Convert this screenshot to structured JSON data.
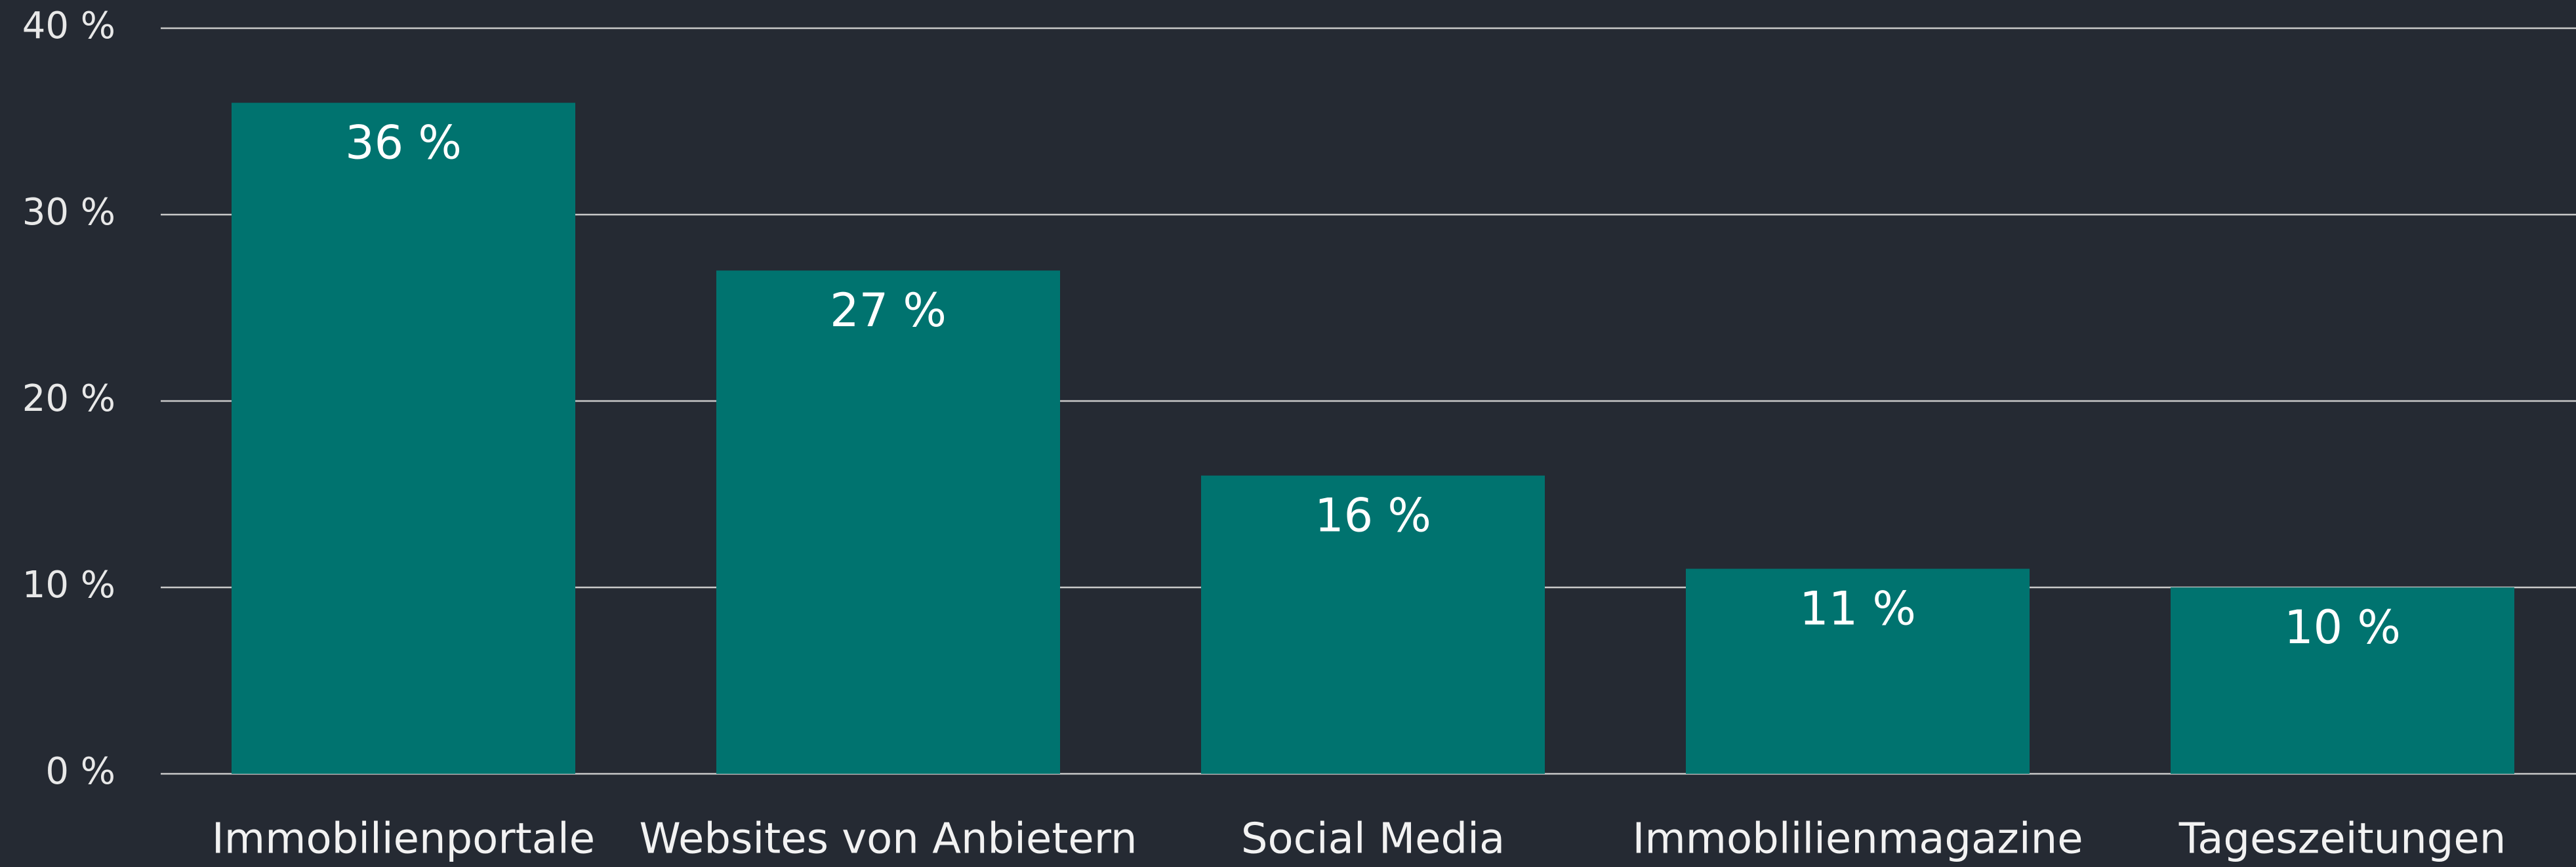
{
  "chart_data": {
    "type": "bar",
    "categories": [
      "Immobilienportale",
      "Websites von Anbietern",
      "Social Media",
      "Immoblilienmagazine",
      "Tageszeitungen"
    ],
    "values": [
      36,
      27,
      16,
      11,
      10
    ],
    "value_labels": [
      "36 %",
      "27 %",
      "16 %",
      "11 %",
      "10 %"
    ],
    "color": "#00736f",
    "ylim": [
      0,
      40
    ],
    "yticks": [
      {
        "value": 0,
        "label": "0 %"
      },
      {
        "value": 10,
        "label": "10 %"
      },
      {
        "value": 20,
        "label": "20 %"
      },
      {
        "value": 30,
        "label": "30 %"
      },
      {
        "value": 40,
        "label": "40 %"
      }
    ],
    "grid": true
  }
}
